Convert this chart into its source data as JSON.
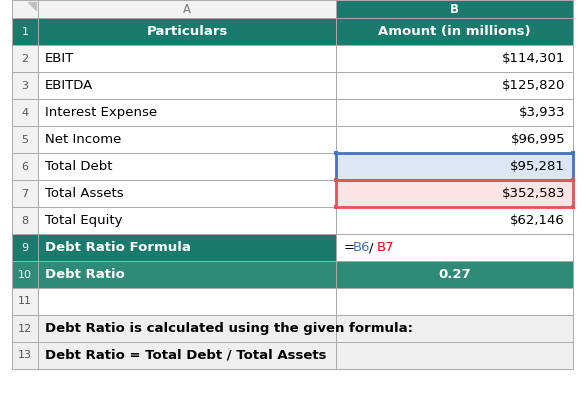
{
  "col_header_bg": "#1a7a6e",
  "teal_row_bg": "#1a7a6e",
  "teal_dark_bg": "#2e8b77",
  "blue_cell_bg": "#dce6f4",
  "red_cell_bg": "#fce4e4",
  "normal_bg": "#ffffff",
  "formula_blue": "#4472c4",
  "formula_red": "#ff0000",
  "bottom_bg": "#efefef",
  "row_num_bg": "#f2f2f2",
  "col_header_gray": "#f2f2f2",
  "grid_color": "#c0c0c0",
  "rows": [
    {
      "num": "1",
      "a": "Particulars",
      "b": "Amount (in millions)",
      "style": "header"
    },
    {
      "num": "2",
      "a": "EBIT",
      "b": "$114,301",
      "style": "normal"
    },
    {
      "num": "3",
      "a": "EBITDA",
      "b": "$125,820",
      "style": "normal"
    },
    {
      "num": "4",
      "a": "Interest Expense",
      "b": "$3,933",
      "style": "normal"
    },
    {
      "num": "5",
      "a": "Net Income",
      "b": "$96,995",
      "style": "normal"
    },
    {
      "num": "6",
      "a": "Total Debt",
      "b": "$95,281",
      "style": "blue_b"
    },
    {
      "num": "7",
      "a": "Total Assets",
      "b": "$352,583",
      "style": "red_b"
    },
    {
      "num": "8",
      "a": "Total Equity",
      "b": "$62,146",
      "style": "normal"
    },
    {
      "num": "9",
      "a": "Debt Ratio Formula",
      "b": "=B6/B7",
      "style": "teal"
    },
    {
      "num": "10",
      "a": "Debt Ratio",
      "b": "0.27",
      "style": "teal_dark"
    },
    {
      "num": "11",
      "a": "",
      "b": "",
      "style": "empty"
    },
    {
      "num": "12",
      "a": "Debt Ratio is calculated using the given formula:",
      "b": "",
      "style": "bottom_text"
    },
    {
      "num": "13",
      "a": "Debt Ratio = Total Debt / Total Assets",
      "b": "",
      "style": "bottom_text"
    }
  ]
}
